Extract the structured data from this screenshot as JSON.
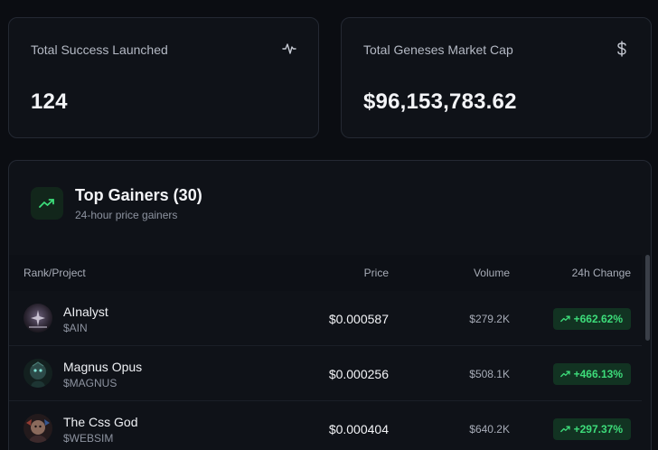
{
  "stats": {
    "launched": {
      "label": "Total Success Launched",
      "value": "124",
      "icon": "activity-icon"
    },
    "market_cap": {
      "label": "Total Geneses Market Cap",
      "value": "$96,153,783.62",
      "icon": "dollar-icon"
    }
  },
  "gainers": {
    "title": "Top Gainers (30)",
    "subtitle": "24-hour price gainers",
    "columns": {
      "rank": "Rank/Project",
      "price": "Price",
      "volume": "Volume",
      "change": "24h Change"
    },
    "rows": [
      {
        "name": "AInalyst",
        "ticker": "$AIN",
        "price": "$0.000587",
        "volume": "$279.2K",
        "change": "+662.62%"
      },
      {
        "name": "Magnus Opus",
        "ticker": "$MAGNUS",
        "price": "$0.000256",
        "volume": "$508.1K",
        "change": "+466.13%"
      },
      {
        "name": "The Css God",
        "ticker": "$WEBSIM",
        "price": "$0.000404",
        "volume": "$640.2K",
        "change": "+297.37%"
      }
    ]
  },
  "colors": {
    "accent_green": "#3ddc7a",
    "badge_bg": "#123322",
    "background": "#0b0d12"
  }
}
